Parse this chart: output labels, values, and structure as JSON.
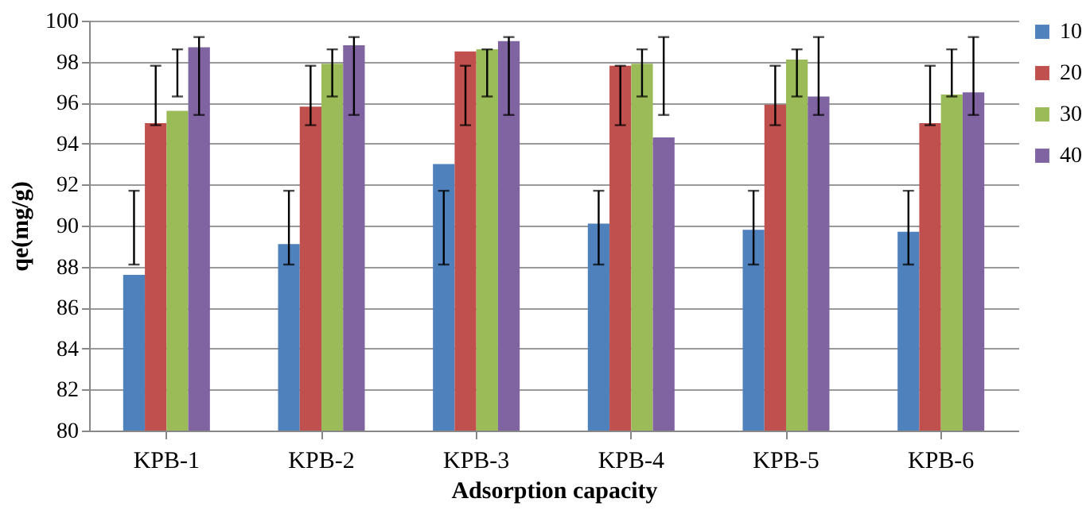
{
  "chart_data": {
    "type": "bar",
    "xlabel": "Adsorption capacity",
    "ylabel": "qe(mg/g)",
    "categories": [
      "KPB-1",
      "KPB-2",
      "KPB-3",
      "KPB-4",
      "KPB-5",
      "KPB-6"
    ],
    "series": [
      {
        "name": "10",
        "color": "#4f81bd",
        "values": [
          87.6,
          89.1,
          93.0,
          90.1,
          89.8,
          89.7
        ],
        "errors": [
          [
            88.1,
            91.7
          ],
          [
            88.1,
            91.7
          ],
          [
            88.1,
            91.7
          ],
          [
            88.1,
            91.7
          ],
          [
            88.1,
            91.7
          ],
          [
            88.1,
            91.7
          ]
        ]
      },
      {
        "name": "20",
        "color": "#c0504d",
        "values": [
          95.0,
          95.8,
          98.5,
          97.8,
          95.9,
          95.0
        ],
        "errors": [
          [
            94.9,
            97.8
          ],
          [
            94.9,
            97.8
          ],
          [
            94.9,
            97.8
          ],
          [
            94.9,
            97.8
          ],
          [
            94.9,
            97.8
          ],
          [
            94.9,
            97.8
          ]
        ]
      },
      {
        "name": "30",
        "color": "#9bbb59",
        "values": [
          95.6,
          97.9,
          98.6,
          97.9,
          98.1,
          96.4
        ],
        "errors": [
          [
            96.3,
            98.6
          ],
          [
            96.3,
            98.6
          ],
          [
            96.3,
            98.6
          ],
          [
            96.3,
            98.6
          ],
          [
            96.3,
            98.6
          ],
          [
            96.3,
            98.6
          ]
        ]
      },
      {
        "name": "40",
        "color": "#8064a2",
        "values": [
          98.7,
          98.8,
          99.0,
          94.3,
          96.3,
          96.5
        ],
        "errors": [
          [
            95.4,
            99.2
          ],
          [
            95.4,
            99.2
          ],
          [
            95.4,
            99.2
          ],
          [
            95.4,
            99.2
          ],
          [
            95.4,
            99.2
          ],
          [
            95.4,
            99.2
          ]
        ]
      }
    ],
    "ylim": [
      80,
      100
    ],
    "yticks": [
      80,
      82,
      84,
      86,
      88,
      90,
      92,
      94,
      96,
      98,
      100
    ],
    "grid": "y",
    "legend": "right"
  }
}
